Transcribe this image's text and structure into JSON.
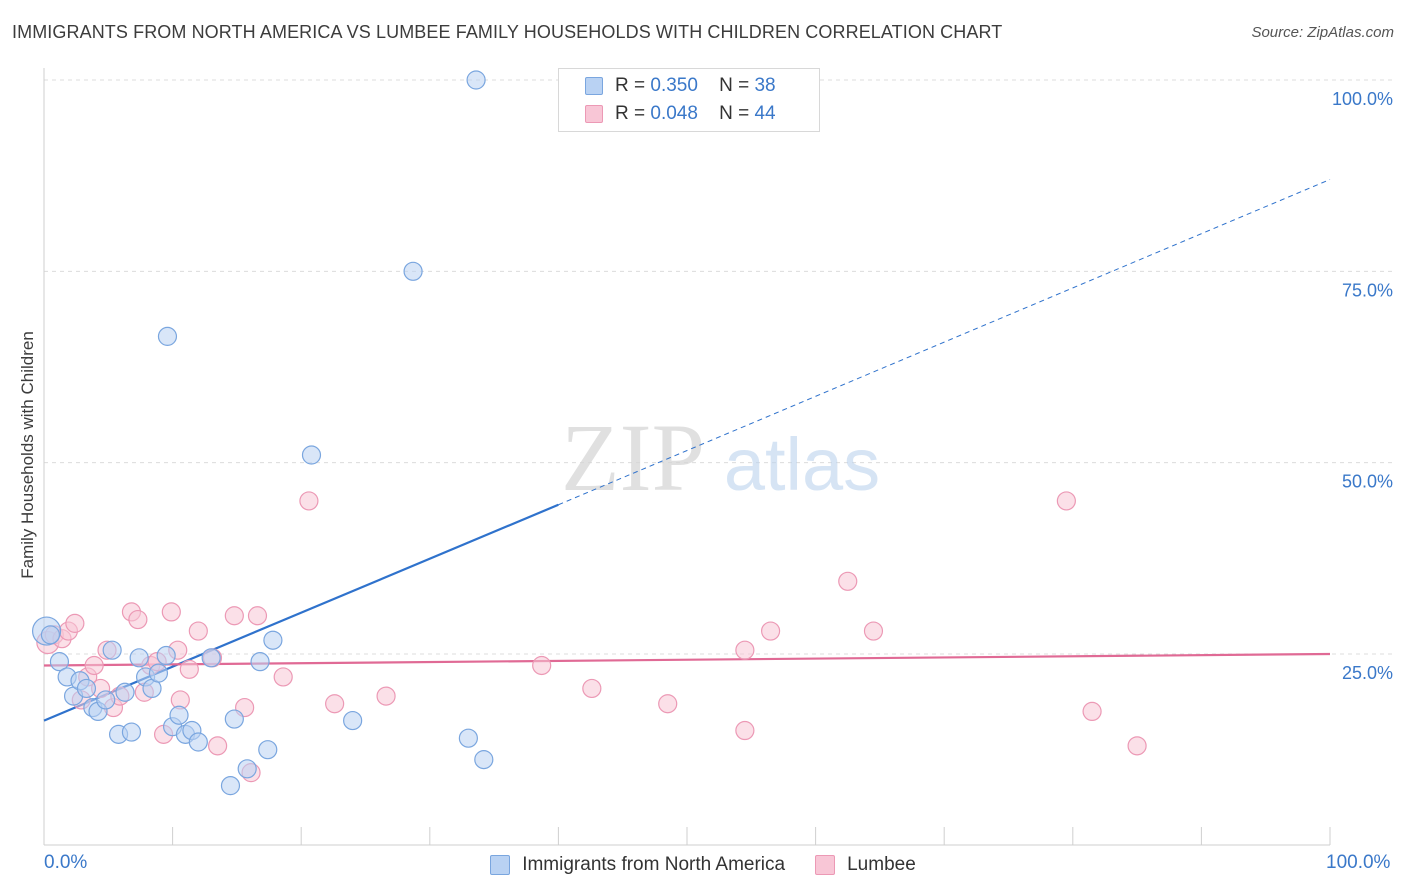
{
  "title": "IMMIGRANTS FROM NORTH AMERICA VS LUMBEE FAMILY HOUSEHOLDS WITH CHILDREN CORRELATION CHART",
  "source": "Source: ZipAtlas.com",
  "watermark": {
    "zip": "ZIP",
    "atlas": "atlas"
  },
  "colors": {
    "blue_fill": "#b9d2f3",
    "blue_stroke": "#7aa6df",
    "blue_line": "#2f72cc",
    "pink_fill": "#f8c6d6",
    "pink_stroke": "#ec99b5",
    "pink_line": "#e06a95",
    "tick_text": "#3a78c9",
    "grid": "#dcdcdc"
  },
  "legend": {
    "r_label": "R =",
    "n_label": "N =",
    "rows": [
      {
        "r": "0.350",
        "n": "38"
      },
      {
        "r": "0.048",
        "n": "44"
      }
    ]
  },
  "chart_data": {
    "type": "scatter",
    "title": "IMMIGRANTS FROM NORTH AMERICA VS LUMBEE FAMILY HOUSEHOLDS WITH CHILDREN CORRELATION CHART",
    "xlabel": "",
    "ylabel": "Family Households with Children",
    "xlim": [
      0,
      100
    ],
    "ylim": [
      0,
      102
    ],
    "x_tick_labels": [
      "0.0%",
      "100.0%"
    ],
    "y_ticks": [
      25,
      50,
      75,
      100
    ],
    "y_tick_labels": [
      "25.0%",
      "50.0%",
      "75.0%",
      "100.0%"
    ],
    "legend_position": "top-center",
    "series": [
      {
        "name": "Immigrants from North America",
        "r": 0.35,
        "n": 38,
        "trend": {
          "x0": 0,
          "y0": 16.3,
          "x1": 40,
          "y1": 44.5,
          "dashed_to_x": 100,
          "dashed_to_y": 87
        },
        "points": [
          [
            0.2,
            28,
            14
          ],
          [
            0.5,
            27.5,
            9
          ],
          [
            1.2,
            24,
            9
          ],
          [
            1.8,
            22,
            9
          ],
          [
            2.3,
            19.5,
            9
          ],
          [
            2.8,
            21.5,
            9
          ],
          [
            3.3,
            20.5,
            9
          ],
          [
            3.8,
            18,
            9
          ],
          [
            4.2,
            17.5,
            9
          ],
          [
            4.8,
            19,
            9
          ],
          [
            5.3,
            25.5,
            9
          ],
          [
            5.8,
            14.5,
            9
          ],
          [
            6.3,
            20,
            9
          ],
          [
            6.8,
            14.8,
            9
          ],
          [
            7.4,
            24.5,
            9
          ],
          [
            7.9,
            22,
            9
          ],
          [
            8.4,
            20.5,
            9
          ],
          [
            8.9,
            22.5,
            9
          ],
          [
            9.5,
            24.8,
            9
          ],
          [
            10.0,
            15.5,
            9
          ],
          [
            10.5,
            17,
            9
          ],
          [
            11.0,
            14.5,
            9
          ],
          [
            11.5,
            15,
            9
          ],
          [
            12.0,
            13.5,
            9
          ],
          [
            13.0,
            24.5,
            9
          ],
          [
            14.5,
            7.8,
            9
          ],
          [
            14.8,
            16.5,
            9
          ],
          [
            15.8,
            10,
            9
          ],
          [
            16.8,
            24,
            9
          ],
          [
            17.4,
            12.5,
            9
          ],
          [
            17.8,
            26.8,
            9
          ],
          [
            9.6,
            66.5,
            9
          ],
          [
            20.8,
            51,
            9
          ],
          [
            28.7,
            75,
            9
          ],
          [
            24.0,
            16.3,
            9
          ],
          [
            33.0,
            14,
            9
          ],
          [
            34.2,
            11.2,
            9
          ],
          [
            33.6,
            100,
            9
          ]
        ]
      },
      {
        "name": "Lumbee",
        "r": 0.048,
        "n": 44,
        "trend": {
          "x0": 0,
          "y0": 23.5,
          "x1": 100,
          "y1": 25
        },
        "points": [
          [
            0.3,
            26.5,
            11
          ],
          [
            0.8,
            27.5,
            9
          ],
          [
            1.4,
            27,
            9
          ],
          [
            1.9,
            28,
            9
          ],
          [
            2.4,
            29,
            9
          ],
          [
            2.9,
            19,
            9
          ],
          [
            3.4,
            22,
            9
          ],
          [
            3.9,
            23.5,
            9
          ],
          [
            4.4,
            20.5,
            9
          ],
          [
            4.9,
            25.5,
            9
          ],
          [
            5.4,
            18,
            9
          ],
          [
            5.9,
            19.5,
            9
          ],
          [
            6.8,
            30.5,
            9
          ],
          [
            7.3,
            29.5,
            9
          ],
          [
            7.8,
            20,
            9
          ],
          [
            8.3,
            23.5,
            9
          ],
          [
            8.8,
            24,
            9
          ],
          [
            9.3,
            14.5,
            9
          ],
          [
            9.9,
            30.5,
            9
          ],
          [
            10.4,
            25.5,
            9
          ],
          [
            10.6,
            19,
            9
          ],
          [
            11.3,
            23,
            9
          ],
          [
            12.0,
            28,
            9
          ],
          [
            13.1,
            24.5,
            9
          ],
          [
            13.5,
            13,
            9
          ],
          [
            14.8,
            30,
            9
          ],
          [
            15.6,
            18,
            9
          ],
          [
            16.1,
            9.5,
            9
          ],
          [
            16.6,
            30,
            9
          ],
          [
            18.6,
            22,
            9
          ],
          [
            20.6,
            45,
            9
          ],
          [
            22.6,
            18.5,
            9
          ],
          [
            26.6,
            19.5,
            9
          ],
          [
            38.7,
            23.5,
            9
          ],
          [
            42.6,
            20.5,
            9
          ],
          [
            48.5,
            18.5,
            9
          ],
          [
            54.5,
            15,
            9
          ],
          [
            54.5,
            25.5,
            9
          ],
          [
            56.5,
            28,
            9
          ],
          [
            62.5,
            34.5,
            9
          ],
          [
            64.5,
            28,
            9
          ],
          [
            79.5,
            45,
            9
          ],
          [
            81.5,
            17.5,
            9
          ],
          [
            85.0,
            13,
            9
          ]
        ]
      }
    ]
  }
}
